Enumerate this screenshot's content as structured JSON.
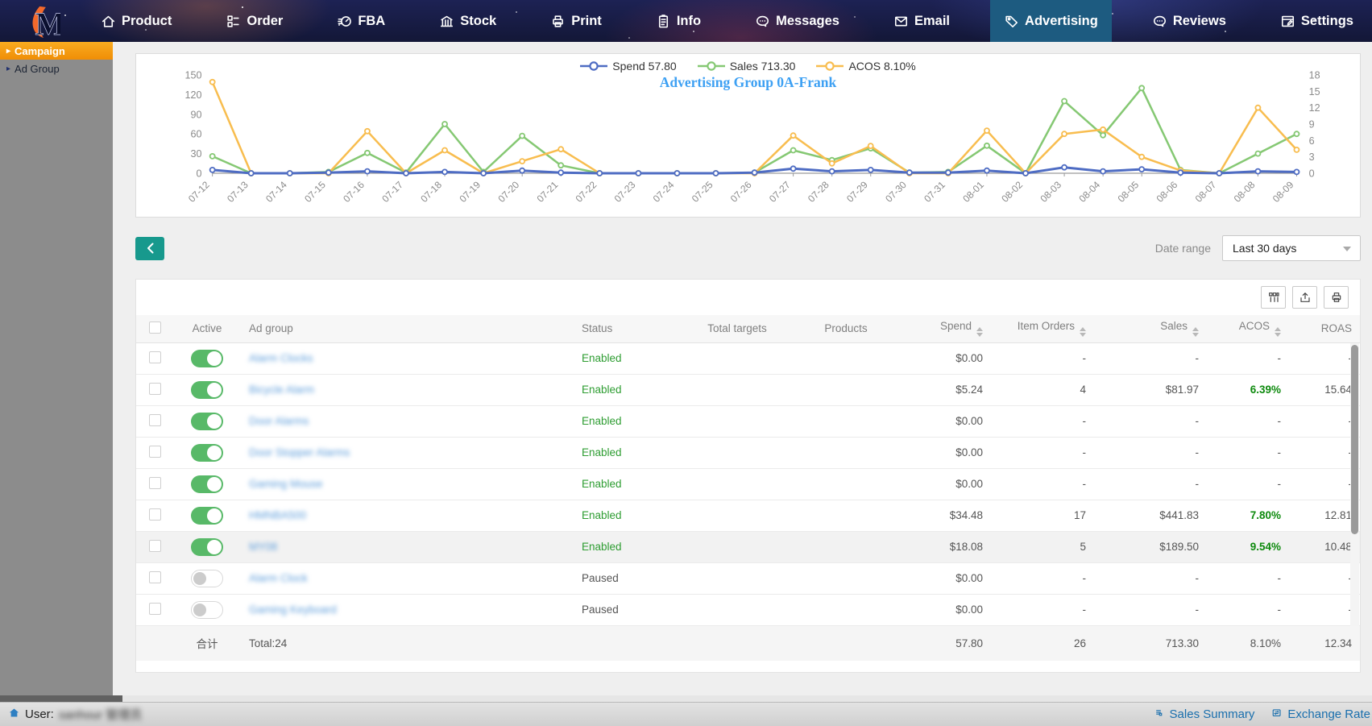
{
  "nav": {
    "items": [
      {
        "label": "Product",
        "icon": "home",
        "active": false
      },
      {
        "label": "Order",
        "icon": "order",
        "active": false
      },
      {
        "label": "FBA",
        "icon": "gauge",
        "active": false
      },
      {
        "label": "Stock",
        "icon": "bank",
        "active": false
      },
      {
        "label": "Print",
        "icon": "printer",
        "active": false
      },
      {
        "label": "Info",
        "icon": "clipboard",
        "active": false
      },
      {
        "label": "Messages",
        "icon": "chat",
        "active": false
      },
      {
        "label": "Email",
        "icon": "mail",
        "active": false
      },
      {
        "label": "Advertising",
        "icon": "tag",
        "active": true
      },
      {
        "label": "Reviews",
        "icon": "chat",
        "active": false
      },
      {
        "label": "Settings",
        "icon": "window",
        "active": false
      }
    ]
  },
  "sidebar": {
    "items": [
      {
        "label": "Campaign",
        "active": true
      },
      {
        "label": "Ad Group",
        "active": false
      }
    ]
  },
  "chart": {
    "title": "Advertising Group 0A-Frank",
    "legend": [
      {
        "label": "Spend 57.80",
        "color": "#4e6cc3"
      },
      {
        "label": "Sales 713.30",
        "color": "#85c873"
      },
      {
        "label": "ACOS 8.10%",
        "color": "#f8bd4f"
      }
    ]
  },
  "chart_data": {
    "type": "line",
    "title": "Advertising Group 0A-Frank",
    "x": [
      "07-12",
      "07-13",
      "07-14",
      "07-15",
      "07-16",
      "07-17",
      "07-18",
      "07-19",
      "07-20",
      "07-21",
      "07-22",
      "07-23",
      "07-24",
      "07-25",
      "07-26",
      "07-27",
      "07-28",
      "07-29",
      "07-30",
      "07-31",
      "08-01",
      "08-02",
      "08-03",
      "08-04",
      "08-05",
      "08-06",
      "08-07",
      "08-08",
      "08-09"
    ],
    "series": [
      {
        "name": "Spend",
        "axis": "left",
        "color": "#4e6cc3",
        "values": [
          5,
          0,
          0,
          1,
          3,
          0,
          2,
          0,
          4,
          1,
          0,
          0,
          0,
          0,
          1,
          7,
          3,
          5,
          1,
          1,
          4,
          0,
          9,
          3,
          6,
          1,
          0,
          3,
          2
        ]
      },
      {
        "name": "Sales",
        "axis": "left",
        "color": "#85c873",
        "values": [
          26,
          0,
          0,
          2,
          31,
          1,
          75,
          2,
          57,
          12,
          0,
          0,
          0,
          0,
          1,
          35,
          20,
          38,
          1,
          2,
          42,
          0,
          110,
          58,
          130,
          5,
          0,
          30,
          60
        ]
      },
      {
        "name": "ACOS",
        "axis": "right",
        "color": "#f8bd4f",
        "values": [
          16.7,
          0,
          0,
          0,
          7.7,
          0,
          4.2,
          0,
          2.2,
          4.4,
          0,
          0,
          0,
          0,
          0,
          6.9,
          1.8,
          5,
          0,
          0,
          7.8,
          0,
          7.2,
          8,
          3,
          0.5,
          0,
          12,
          4.3
        ]
      }
    ],
    "left_axis": {
      "range": [
        0,
        150
      ],
      "ticks": [
        0,
        30,
        60,
        90,
        120,
        150
      ]
    },
    "right_axis": {
      "range": [
        0,
        18
      ],
      "ticks": [
        0,
        3,
        6,
        9,
        12,
        15,
        18
      ]
    },
    "grid": false,
    "legend_position": "top"
  },
  "controls": {
    "date_range_label": "Date range",
    "date_range_value": "Last 30 days"
  },
  "table": {
    "headers": [
      {
        "key": "check",
        "label": "",
        "sortable": false
      },
      {
        "key": "active",
        "label": "Active",
        "sortable": false
      },
      {
        "key": "name",
        "label": "Ad group",
        "sortable": false
      },
      {
        "key": "status",
        "label": "Status",
        "sortable": false
      },
      {
        "key": "targets",
        "label": "Total targets",
        "sortable": false
      },
      {
        "key": "products",
        "label": "Products",
        "sortable": false
      },
      {
        "key": "spend",
        "label": "Spend",
        "sortable": true
      },
      {
        "key": "orders",
        "label": "Item Orders",
        "sortable": true
      },
      {
        "key": "sales",
        "label": "Sales",
        "sortable": true
      },
      {
        "key": "acos",
        "label": "ACOS",
        "sortable": true
      },
      {
        "key": "roas",
        "label": "ROAS",
        "sortable": false
      }
    ],
    "rows": [
      {
        "name": "Alarm Clocks",
        "blurred": true,
        "active": true,
        "status": "Enabled",
        "targets": "",
        "products": "",
        "spend": "$0.00",
        "orders": "-",
        "sales": "-",
        "acos": "-",
        "roas": "-",
        "selected": false
      },
      {
        "name": "Bicycle Alarm",
        "blurred": true,
        "active": true,
        "status": "Enabled",
        "targets": "",
        "products": "",
        "spend": "$5.24",
        "orders": "4",
        "sales": "$81.97",
        "acos": "6.39%",
        "roas": "15.64",
        "selected": false
      },
      {
        "name": "Door Alarms",
        "blurred": true,
        "active": true,
        "status": "Enabled",
        "targets": "",
        "products": "",
        "spend": "$0.00",
        "orders": "-",
        "sales": "-",
        "acos": "-",
        "roas": "-",
        "selected": false
      },
      {
        "name": "Door Stopper Alarms",
        "blurred": true,
        "active": true,
        "status": "Enabled",
        "targets": "",
        "products": "",
        "spend": "$0.00",
        "orders": "-",
        "sales": "-",
        "acos": "-",
        "roas": "-",
        "selected": false
      },
      {
        "name": "Gaming Mouse",
        "blurred": true,
        "active": true,
        "status": "Enabled",
        "targets": "",
        "products": "",
        "spend": "$0.00",
        "orders": "-",
        "sales": "-",
        "acos": "-",
        "roas": "-",
        "selected": false
      },
      {
        "name": "HMNBA500",
        "blurred": true,
        "active": true,
        "status": "Enabled",
        "targets": "",
        "products": "",
        "spend": "$34.48",
        "orders": "17",
        "sales": "$441.83",
        "acos": "7.80%",
        "roas": "12.81",
        "selected": false
      },
      {
        "name": "MY08",
        "blurred": true,
        "active": true,
        "status": "Enabled",
        "targets": "",
        "products": "",
        "spend": "$18.08",
        "orders": "5",
        "sales": "$189.50",
        "acos": "9.54%",
        "roas": "10.48",
        "selected": true
      },
      {
        "name": "Alarm Clock",
        "blurred": true,
        "active": false,
        "status": "Paused",
        "targets": "",
        "products": "",
        "spend": "$0.00",
        "orders": "-",
        "sales": "-",
        "acos": "-",
        "roas": "-",
        "selected": false
      },
      {
        "name": "Gaming Keyboard",
        "blurred": true,
        "active": false,
        "status": "Paused",
        "targets": "",
        "products": "",
        "spend": "$0.00",
        "orders": "-",
        "sales": "-",
        "acos": "-",
        "roas": "-",
        "selected": false
      }
    ],
    "totals": {
      "label_cn": "合计",
      "label": "Total:24",
      "spend": "57.80",
      "orders": "26",
      "sales": "713.30",
      "acos": "8.10%",
      "roas": "12.34"
    }
  },
  "statusbar": {
    "user_label": "User:",
    "user_value": "sanhour  管理员",
    "links": [
      {
        "label": "Sales Summary",
        "icon": "summary"
      },
      {
        "label": "Exchange Rate",
        "icon": "exchange"
      }
    ]
  }
}
